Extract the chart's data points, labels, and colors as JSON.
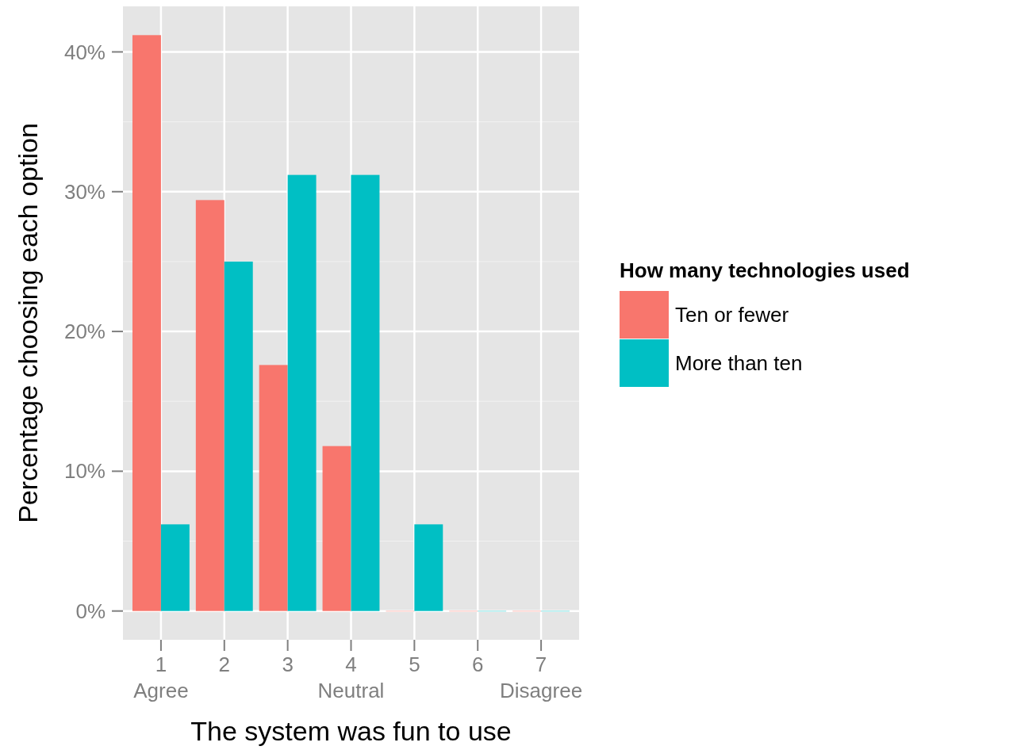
{
  "chart_data": {
    "type": "bar",
    "xlabel": "The system was fun to use",
    "ylabel": "Percentage choosing each option",
    "legend_title": "How many technologies used",
    "categories": [
      "1\nAgree",
      "2",
      "3",
      "4\nNeutral",
      "5",
      "6",
      "7\nDisagree"
    ],
    "series": [
      {
        "name": "Ten or fewer",
        "color": "#f8766d",
        "values": [
          41.2,
          29.4,
          17.6,
          11.8,
          0,
          0,
          0
        ]
      },
      {
        "name": "More than ten",
        "color": "#00bfc4",
        "values": [
          6.2,
          25.0,
          31.2,
          31.2,
          6.2,
          0,
          0
        ]
      }
    ],
    "ylim": [
      -2.06,
      43.26
    ],
    "yticks": [
      {
        "value": 0,
        "label": "0%"
      },
      {
        "value": 10,
        "label": "10%"
      },
      {
        "value": 20,
        "label": "20%"
      },
      {
        "value": 30,
        "label": "30%"
      },
      {
        "value": 40,
        "label": "40%"
      }
    ],
    "grid": true,
    "legend": "right"
  }
}
